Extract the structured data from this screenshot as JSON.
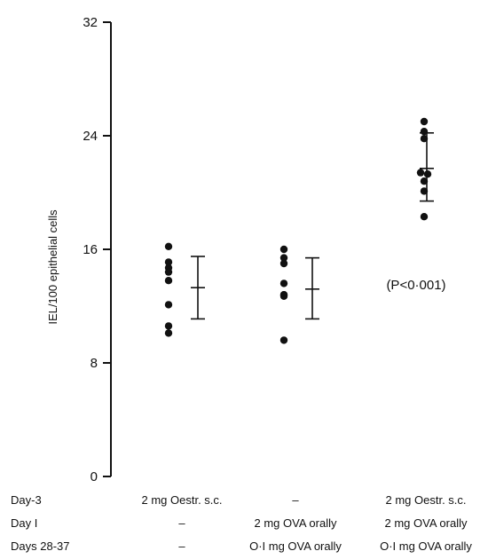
{
  "chart_data": {
    "type": "scatter",
    "ylabel": "IEL/100 epithelial cells",
    "ylim": [
      0,
      32
    ],
    "yticks": [
      0,
      8,
      16,
      24,
      32
    ],
    "ytick_labels": [
      "0",
      "8",
      "16",
      "24",
      "32"
    ],
    "grid": false,
    "groups": [
      {
        "points": [
          16.2,
          15.1,
          14.7,
          14.4,
          13.8,
          12.1,
          10.6,
          10.1
        ],
        "mean": 13.3,
        "error_low": 11.1,
        "error_high": 15.5
      },
      {
        "points": [
          16.0,
          15.4,
          15.0,
          13.6,
          12.8,
          12.8,
          12.7,
          9.6
        ],
        "mean": 13.2,
        "error_low": 11.1,
        "error_high": 15.4
      },
      {
        "points": [
          25.0,
          24.3,
          23.8,
          21.4,
          21.3,
          20.8,
          20.1,
          18.3
        ],
        "mean": 21.7,
        "error_low": 19.4,
        "error_high": 24.2
      }
    ],
    "annotations": [
      {
        "text": "(P<0·001)",
        "group": 2,
        "y": 13.5
      }
    ]
  },
  "treatment_table": {
    "rows": [
      {
        "label": "Day-3",
        "cells": [
          "2 mg Oestr. s.c.",
          "–",
          "2 mg Oestr. s.c."
        ]
      },
      {
        "label": "Day I",
        "cells": [
          "–",
          "2 mg OVA orally",
          "2 mg OVA orally"
        ]
      },
      {
        "label": "Days 28-37",
        "cells": [
          "–",
          "O·I mg OVA orally",
          "O·I mg OVA orally"
        ]
      }
    ]
  }
}
